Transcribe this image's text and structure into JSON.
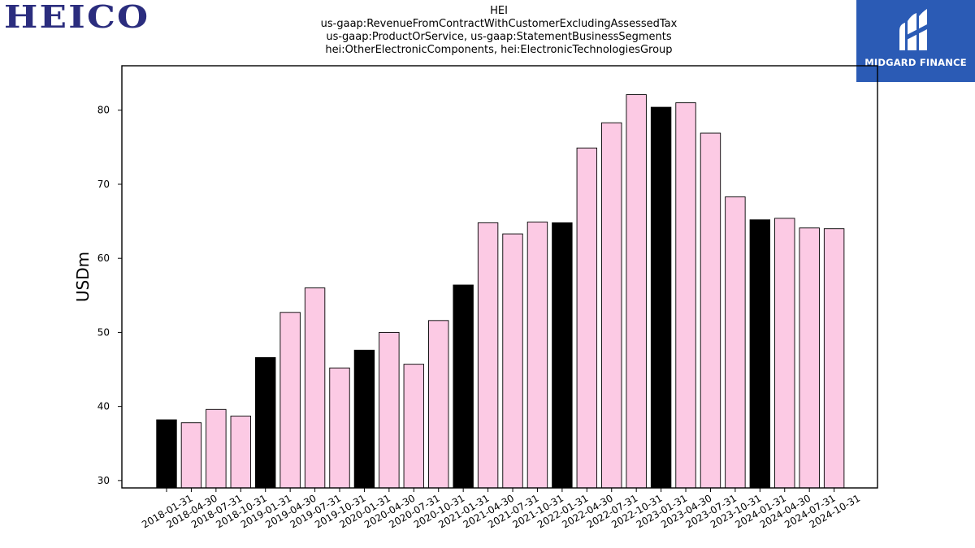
{
  "header": {
    "logo_text": "HEICO",
    "brand_text": "MIDGARD FINANCE",
    "brand_color": "#2b5bb5",
    "logo_color": "#2b2d7e"
  },
  "chart_data": {
    "type": "bar",
    "title_lines": [
      "HEI",
      "us-gaap:RevenueFromContractWithCustomerExcludingAssessedTax",
      "us-gaap:ProductOrService, us-gaap:StatementBusinessSegments",
      "hei:OtherElectronicComponents, hei:ElectronicTechnologiesGroup"
    ],
    "xlabel": "",
    "ylabel": "USDm",
    "ylim": [
      29,
      86
    ],
    "yticks": [
      30,
      40,
      50,
      60,
      70,
      80
    ],
    "grid": false,
    "legend": "none",
    "colors": {
      "annual": "#000000",
      "quarter": "#fccae4",
      "edge": "#000000"
    },
    "categories": [
      "2018-01-31",
      "2018-04-30",
      "2018-07-31",
      "2018-10-31",
      "2019-01-31",
      "2019-04-30",
      "2019-07-31",
      "2019-10-31",
      "2020-01-31",
      "2020-04-30",
      "2020-07-31",
      "2020-10-31",
      "2021-01-31",
      "2021-04-30",
      "2021-07-31",
      "2021-10-31",
      "2022-01-31",
      "2022-04-30",
      "2022-07-31",
      "2022-10-31",
      "2023-01-31",
      "2023-04-30",
      "2023-07-31",
      "2023-10-31",
      "2024-01-31",
      "2024-04-30",
      "2024-07-31",
      "2024-10-31"
    ],
    "values": [
      38.2,
      37.8,
      39.6,
      38.7,
      46.6,
      52.7,
      56.0,
      45.2,
      47.6,
      50.0,
      45.7,
      51.6,
      56.4,
      64.8,
      63.3,
      64.9,
      64.8,
      74.9,
      78.3,
      82.1,
      80.4,
      81.0,
      76.9,
      68.3,
      65.2,
      65.4,
      64.1,
      64.0
    ],
    "highlight": [
      true,
      false,
      false,
      false,
      true,
      false,
      false,
      false,
      true,
      false,
      false,
      false,
      true,
      false,
      false,
      false,
      true,
      false,
      false,
      false,
      true,
      false,
      false,
      false,
      true,
      false,
      false,
      false
    ]
  }
}
